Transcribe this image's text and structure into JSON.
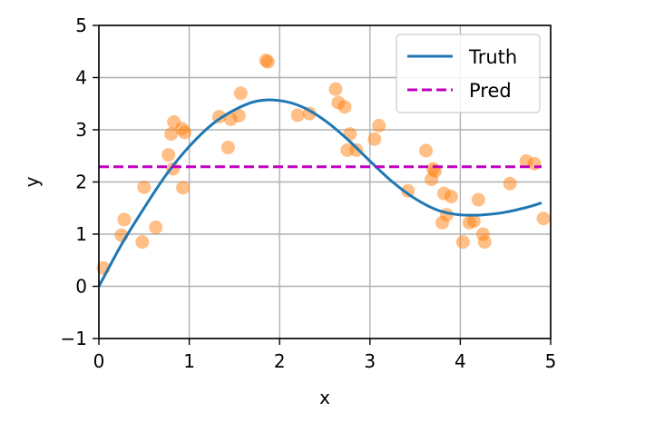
{
  "chart_data": {
    "type": "scatter",
    "title": "",
    "xlabel": "x",
    "ylabel": "y",
    "xlim": [
      0,
      5
    ],
    "ylim": [
      -1,
      5
    ],
    "xticks": [
      "0",
      "1",
      "2",
      "3",
      "4",
      "5"
    ],
    "yticks": [
      "−1",
      "0",
      "1",
      "2",
      "3",
      "4",
      "5"
    ],
    "grid": true,
    "legend_position": "top-right",
    "series": [
      {
        "name": "Truth",
        "kind": "line",
        "style": "solid",
        "color": "#1f77b4",
        "x": [
          0.0,
          0.25,
          0.5,
          0.75,
          1.0,
          1.25,
          1.5,
          1.75,
          2.0,
          2.25,
          2.5,
          2.75,
          3.0,
          3.25,
          3.5,
          3.75,
          4.0,
          4.25,
          4.5,
          4.75,
          4.9
        ],
        "y": [
          0.0,
          0.8,
          1.5,
          2.15,
          2.68,
          3.1,
          3.38,
          3.55,
          3.56,
          3.44,
          3.18,
          2.82,
          2.4,
          2.0,
          1.68,
          1.46,
          1.37,
          1.37,
          1.42,
          1.52,
          1.6
        ]
      },
      {
        "name": "Pred",
        "kind": "line",
        "style": "dashed",
        "color": "#bf00bf",
        "x": [
          0.0,
          4.9
        ],
        "y": [
          2.29,
          2.29
        ]
      },
      {
        "name": "",
        "kind": "points",
        "color": "#ff7f0e",
        "x": [
          0.05,
          0.25,
          0.28,
          0.48,
          0.5,
          0.63,
          0.77,
          0.8,
          0.82,
          0.83,
          0.92,
          0.93,
          0.95,
          1.33,
          1.43,
          1.46,
          1.55,
          1.57,
          1.85,
          1.87,
          2.2,
          2.33,
          2.62,
          2.65,
          2.72,
          2.75,
          2.78,
          2.85,
          3.05,
          3.1,
          3.42,
          3.62,
          3.68,
          3.7,
          3.72,
          3.8,
          3.82,
          3.85,
          3.9,
          4.03,
          4.1,
          4.15,
          4.2,
          4.25,
          4.27,
          4.55,
          4.73,
          4.82,
          4.92
        ],
        "y": [
          0.35,
          0.98,
          1.28,
          0.85,
          1.9,
          1.13,
          2.52,
          2.92,
          2.25,
          3.15,
          3.02,
          1.89,
          2.95,
          3.25,
          2.66,
          3.2,
          3.27,
          3.7,
          4.33,
          4.3,
          3.28,
          3.31,
          3.78,
          3.52,
          3.44,
          2.61,
          2.92,
          2.61,
          2.82,
          3.08,
          1.83,
          2.6,
          2.05,
          2.25,
          2.21,
          1.22,
          1.78,
          1.37,
          1.72,
          0.85,
          1.22,
          1.25,
          1.66,
          1.0,
          0.85,
          1.97,
          2.4,
          2.35,
          1.3
        ]
      }
    ]
  }
}
